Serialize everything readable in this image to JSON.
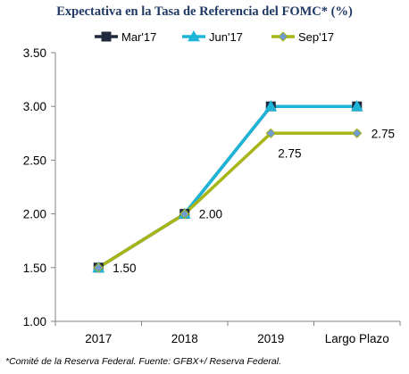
{
  "chart_data": {
    "type": "line",
    "title": "Expectativa en la Tasa de Referencia del FOMC*  (%)",
    "footnote": "*Comité de la Reserva Federal. Fuente: GFBX+/  Reserva Federal.",
    "xlabel": "",
    "ylabel": "",
    "categories": [
      "2017",
      "2018",
      "2019",
      "Largo Plazo"
    ],
    "ylim": [
      1.0,
      3.5
    ],
    "yticks": [
      "1.00",
      "1.50",
      "2.00",
      "2.50",
      "3.00",
      "3.50"
    ],
    "grid": false,
    "legend_position": "top",
    "series": [
      {
        "name": "Mar'17",
        "values": [
          1.5,
          2.0,
          3.0,
          3.0
        ],
        "color": "#1f2a3c",
        "marker": "square"
      },
      {
        "name": "Jun'17",
        "values": [
          1.5,
          2.0,
          3.0,
          3.0
        ],
        "color": "#1cb5d8",
        "marker": "triangle"
      },
      {
        "name": "Sep'17",
        "values": [
          1.5,
          2.0,
          2.75,
          2.75
        ],
        "color": "#a7b516",
        "marker": "diamond",
        "marker_fill": "#6f9bd1"
      }
    ],
    "data_labels": [
      {
        "category": "2017",
        "text": "1.50"
      },
      {
        "category": "2018",
        "text": "2.00"
      },
      {
        "category": "2019",
        "text": "2.75"
      },
      {
        "category": "Largo Plazo",
        "text": "2.75"
      }
    ],
    "colors": {
      "axis": "#808080",
      "title": "#1f3864"
    }
  }
}
